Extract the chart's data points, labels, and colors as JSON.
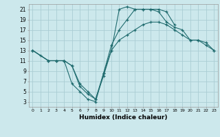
{
  "xlabel": "Humidex (Indice chaleur)",
  "bg_color": "#cce8ec",
  "grid_color": "#aacdd4",
  "line_color": "#1f6b6e",
  "xlim": [
    -0.5,
    23.5
  ],
  "ylim": [
    2,
    22
  ],
  "xticks": [
    0,
    1,
    2,
    3,
    4,
    5,
    6,
    7,
    8,
    9,
    10,
    11,
    12,
    13,
    14,
    15,
    16,
    17,
    18,
    19,
    20,
    21,
    22,
    23
  ],
  "yticks": [
    3,
    5,
    7,
    9,
    11,
    13,
    15,
    17,
    19,
    21
  ],
  "line1_x": [
    0,
    1,
    2,
    3,
    4,
    5,
    6,
    7,
    8,
    9,
    10,
    11,
    12,
    13,
    14,
    15,
    16,
    17,
    18
  ],
  "line1_y": [
    13,
    12,
    11,
    11,
    11,
    6.5,
    5,
    3.5,
    3,
    8.5,
    13,
    21,
    21.5,
    21,
    21,
    21,
    21,
    20.5,
    18
  ],
  "line2_x": [
    0,
    2,
    3,
    4,
    5,
    6,
    7,
    8,
    9,
    10,
    11,
    12,
    13,
    14,
    15,
    16,
    17,
    18,
    19,
    20,
    21,
    22,
    23
  ],
  "line2_y": [
    13,
    11,
    11,
    11,
    10,
    6.5,
    5,
    3.5,
    8.5,
    14,
    17,
    19,
    21,
    21,
    21,
    20.5,
    18.5,
    17.5,
    17,
    15,
    15,
    14.5,
    13
  ],
  "line3_x": [
    0,
    2,
    3,
    4,
    5,
    6,
    7,
    8,
    9,
    10,
    11,
    12,
    13,
    14,
    15,
    16,
    17,
    18,
    19,
    20,
    21,
    22,
    23
  ],
  "line3_y": [
    13,
    11,
    11,
    11,
    10,
    6,
    4.5,
    3.5,
    8,
    13,
    15,
    16,
    17,
    18,
    18.5,
    18.5,
    18,
    17,
    16,
    15,
    15,
    14,
    13
  ]
}
